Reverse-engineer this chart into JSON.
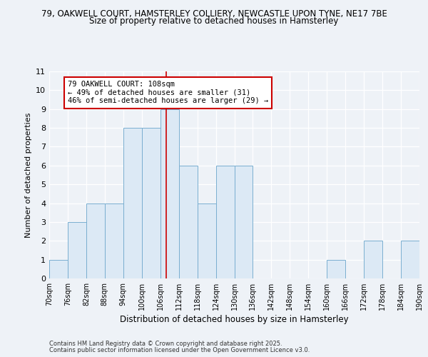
{
  "title_top": "79, OAKWELL COURT, HAMSTERLEY COLLIERY, NEWCASTLE UPON TYNE, NE17 7BE",
  "title_sub": "Size of property relative to detached houses in Hamsterley",
  "xlabel": "Distribution of detached houses by size in Hamsterley",
  "ylabel": "Number of detached properties",
  "bar_edges": [
    70,
    76,
    82,
    88,
    94,
    100,
    106,
    112,
    118,
    124,
    130,
    136,
    142,
    148,
    154,
    160,
    166,
    172,
    178,
    184,
    190
  ],
  "bar_heights": [
    1,
    3,
    4,
    4,
    8,
    8,
    9,
    6,
    4,
    6,
    6,
    0,
    0,
    0,
    0,
    1,
    0,
    2,
    0,
    2
  ],
  "bar_color": "#dce9f5",
  "bar_edgecolor": "#7aaed0",
  "vline_x": 108,
  "vline_color": "#cc0000",
  "annotation_title": "79 OAKWELL COURT: 108sqm",
  "annotation_line2": "← 49% of detached houses are smaller (31)",
  "annotation_line3": "46% of semi-detached houses are larger (29) →",
  "annotation_box_edgecolor": "#cc0000",
  "ylim": [
    0,
    11
  ],
  "yticks": [
    0,
    1,
    2,
    3,
    4,
    5,
    6,
    7,
    8,
    9,
    10,
    11
  ],
  "tick_labels": [
    "70sqm",
    "76sqm",
    "82sqm",
    "88sqm",
    "94sqm",
    "100sqm",
    "106sqm",
    "112sqm",
    "118sqm",
    "124sqm",
    "130sqm",
    "136sqm",
    "142sqm",
    "148sqm",
    "154sqm",
    "160sqm",
    "166sqm",
    "172sqm",
    "178sqm",
    "184sqm",
    "190sqm"
  ],
  "footer1": "Contains HM Land Registry data © Crown copyright and database right 2025.",
  "footer2": "Contains public sector information licensed under the Open Government Licence v3.0.",
  "bg_color": "#eef2f7",
  "grid_color": "#ffffff"
}
